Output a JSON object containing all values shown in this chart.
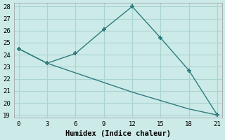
{
  "line1_x": [
    0,
    3,
    6,
    9,
    12,
    15,
    18,
    21
  ],
  "line1_y": [
    24.5,
    23.3,
    24.1,
    26.1,
    28.0,
    25.4,
    22.7,
    19.0
  ],
  "line2_x": [
    0,
    3,
    6,
    9,
    12,
    15,
    18,
    21
  ],
  "line2_y": [
    24.5,
    23.3,
    22.5,
    21.7,
    20.9,
    20.2,
    19.5,
    19.0
  ],
  "color": "#2e7d7d",
  "bg_color": "#cceae8",
  "grid_color": "#aad4d0",
  "xlabel": "Humidex (Indice chaleur)",
  "xlim": [
    -0.5,
    21.5
  ],
  "ylim": [
    18.8,
    28.3
  ],
  "xticks": [
    0,
    3,
    6,
    9,
    12,
    15,
    18,
    21
  ],
  "yticks": [
    19,
    20,
    21,
    22,
    23,
    24,
    25,
    26,
    27,
    28
  ],
  "xlabel_fontsize": 7.5,
  "tick_fontsize": 6.5
}
